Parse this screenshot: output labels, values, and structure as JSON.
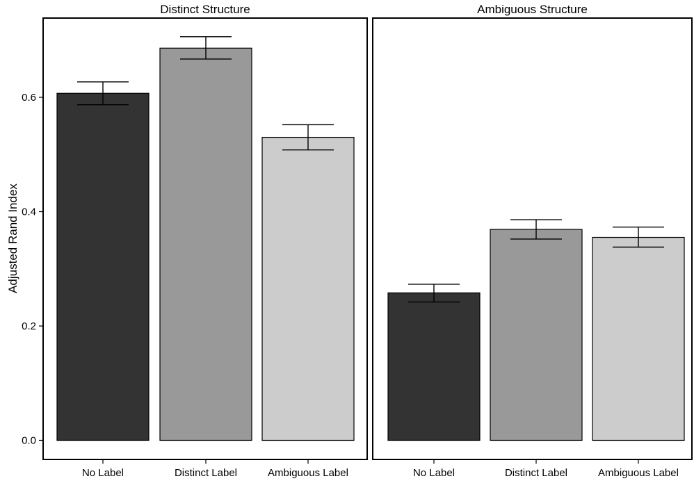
{
  "chart_data": {
    "type": "bar",
    "ylabel": "Adjusted Rand Index",
    "xlabel": "",
    "ylim": [
      0,
      0.7
    ],
    "yticks": [
      0.0,
      0.2,
      0.4,
      0.6
    ],
    "ytick_labels": [
      "0.0",
      "0.2",
      "0.4",
      "0.6"
    ],
    "grid": false,
    "categories": [
      "No Label",
      "Distinct Label",
      "Ambiguous Label"
    ],
    "colors": [
      "#333333",
      "#999999",
      "#cccccc"
    ],
    "panels": [
      {
        "title": "Distinct Structure",
        "values": [
          0.607,
          0.686,
          0.53
        ],
        "err_low": [
          0.587,
          0.667,
          0.508
        ],
        "err_high": [
          0.627,
          0.706,
          0.552
        ]
      },
      {
        "title": "Ambiguous Structure",
        "values": [
          0.258,
          0.369,
          0.355
        ],
        "err_low": [
          0.242,
          0.352,
          0.338
        ],
        "err_high": [
          0.273,
          0.386,
          0.373
        ]
      }
    ]
  }
}
